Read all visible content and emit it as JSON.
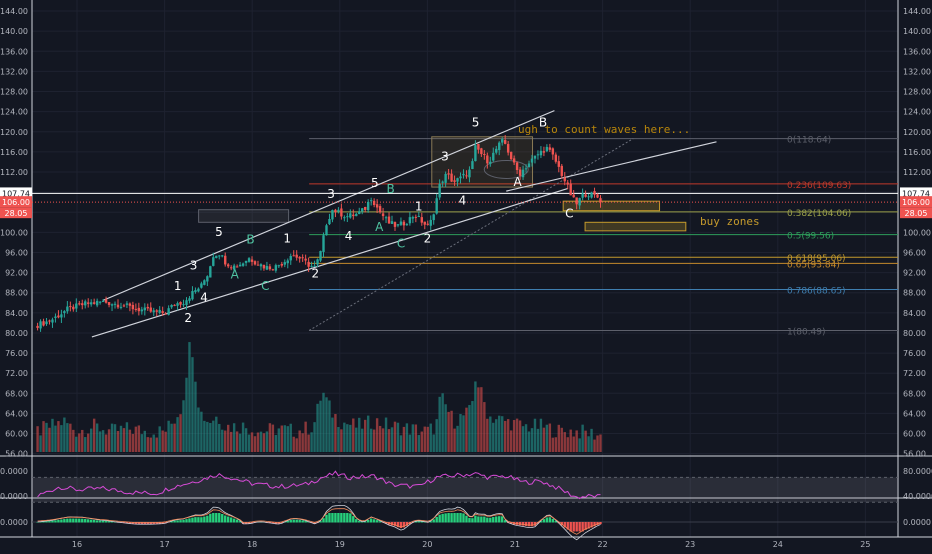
{
  "chart_data": {
    "type": "candlestick",
    "x_ticks": [
      "16",
      "17",
      "18",
      "19",
      "20",
      "21",
      "22",
      "23",
      "24",
      "25"
    ],
    "y_ticks_left": [
      "144.00",
      "140.00",
      "136.00",
      "132.00",
      "128.00",
      "124.00",
      "120.00",
      "116.00",
      "112.00",
      "108.00",
      "104.00",
      "100.00",
      "96.00",
      "92.00",
      "88.00",
      "84.00",
      "80.00",
      "76.00",
      "72.00",
      "68.00",
      "64.00",
      "60.00",
      "56.00"
    ],
    "y_ticks_right": [
      "144.00",
      "140.00",
      "136.00",
      "132.00",
      "128.00",
      "124.00",
      "120.00",
      "116.00",
      "112.00",
      "108.00",
      "104.00",
      "100.00",
      "96.00",
      "92.00",
      "88.00",
      "84.00",
      "80.00",
      "76.00",
      "72.00",
      "68.00",
      "64.00",
      "60.00",
      "56.00"
    ],
    "ylim": [
      55,
      145
    ],
    "xlim": [
      15.5,
      25.3
    ],
    "price_labels": {
      "current": "107.74",
      "line": "106.00",
      "sub": "28.05",
      "right_current": "107.74",
      "right_line": "106.00",
      "right_sub": "28.05"
    },
    "close_path": [
      [
        15.55,
        81.6
      ],
      [
        15.7,
        82.5
      ],
      [
        15.9,
        84.8
      ],
      [
        16.1,
        85.8
      ],
      [
        16.3,
        86.2
      ],
      [
        16.5,
        85.6
      ],
      [
        16.7,
        84.7
      ],
      [
        16.9,
        84.1
      ],
      [
        17.0,
        84.0
      ],
      [
        17.12,
        85.8
      ],
      [
        17.22,
        86.2
      ],
      [
        17.32,
        88.0
      ],
      [
        17.42,
        89.4
      ],
      [
        17.5,
        92.0
      ],
      [
        17.55,
        95.4
      ],
      [
        17.62,
        96.0
      ],
      [
        17.7,
        94.0
      ],
      [
        17.78,
        93.2
      ],
      [
        17.88,
        93.8
      ],
      [
        17.96,
        94.9
      ],
      [
        18.05,
        94.0
      ],
      [
        18.15,
        93.1
      ],
      [
        18.25,
        93.0
      ],
      [
        18.35,
        94.0
      ],
      [
        18.45,
        95.6
      ],
      [
        18.55,
        94.8
      ],
      [
        18.65,
        93.5
      ],
      [
        18.72,
        93.0
      ],
      [
        18.78,
        96.0
      ],
      [
        18.85,
        102.0
      ],
      [
        18.92,
        104.6
      ],
      [
        19.0,
        103.8
      ],
      [
        19.08,
        103.2
      ],
      [
        19.18,
        103.5
      ],
      [
        19.28,
        104.5
      ],
      [
        19.36,
        107.0
      ],
      [
        19.44,
        104.5
      ],
      [
        19.55,
        102.0
      ],
      [
        19.65,
        101.2
      ],
      [
        19.75,
        102.0
      ],
      [
        19.85,
        103.5
      ],
      [
        19.95,
        102.0
      ],
      [
        20.0,
        101.0
      ],
      [
        20.05,
        102.5
      ],
      [
        20.15,
        110.0
      ],
      [
        20.22,
        111.5
      ],
      [
        20.3,
        110.0
      ],
      [
        20.4,
        111.0
      ],
      [
        20.5,
        112.5
      ],
      [
        20.55,
        117.0
      ],
      [
        20.62,
        115.5
      ],
      [
        20.7,
        114.0
      ],
      [
        20.8,
        117.0
      ],
      [
        20.87,
        118.3
      ],
      [
        20.95,
        115.0
      ],
      [
        21.0,
        113.0
      ],
      [
        21.05,
        111.6
      ],
      [
        21.12,
        113.0
      ],
      [
        21.2,
        114.5
      ],
      [
        21.28,
        115.8
      ],
      [
        21.36,
        116.8
      ],
      [
        21.42,
        115.5
      ],
      [
        21.48,
        113.6
      ],
      [
        21.55,
        111.0
      ],
      [
        21.6,
        109.0
      ],
      [
        21.65,
        107.0
      ],
      [
        21.7,
        105.5
      ],
      [
        21.76,
        107.2
      ],
      [
        21.82,
        107.8
      ],
      [
        21.88,
        107.4
      ],
      [
        21.94,
        107.0
      ],
      [
        22.0,
        106.0
      ]
    ],
    "volume_path": [
      [
        15.55,
        58
      ],
      [
        15.7,
        59
      ],
      [
        15.85,
        60
      ],
      [
        16.0,
        58
      ],
      [
        16.2,
        59
      ],
      [
        16.4,
        58
      ],
      [
        16.6,
        58.5
      ],
      [
        16.8,
        58
      ],
      [
        17.0,
        58
      ],
      [
        17.1,
        60
      ],
      [
        17.2,
        63
      ],
      [
        17.3,
        77
      ],
      [
        17.4,
        62
      ],
      [
        17.5,
        60
      ],
      [
        17.6,
        61
      ],
      [
        17.7,
        59
      ],
      [
        17.9,
        59
      ],
      [
        18.1,
        58
      ],
      [
        18.3,
        58.5
      ],
      [
        18.5,
        58
      ],
      [
        18.7,
        59
      ],
      [
        18.8,
        66
      ],
      [
        18.9,
        62
      ],
      [
        19.0,
        60
      ],
      [
        19.2,
        59
      ],
      [
        19.4,
        60
      ],
      [
        19.6,
        59
      ],
      [
        19.8,
        58.5
      ],
      [
        20.0,
        58
      ],
      [
        20.1,
        59
      ],
      [
        20.15,
        65
      ],
      [
        20.3,
        60
      ],
      [
        20.5,
        62
      ],
      [
        20.55,
        69
      ],
      [
        20.7,
        61
      ],
      [
        20.9,
        60
      ],
      [
        21.1,
        59
      ],
      [
        21.3,
        59
      ],
      [
        21.5,
        58
      ],
      [
        21.7,
        58
      ],
      [
        21.9,
        57.5
      ],
      [
        22.0,
        57
      ]
    ],
    "rsi_path": [
      [
        15.55,
        40
      ],
      [
        15.8,
        55
      ],
      [
        16.0,
        50
      ],
      [
        16.3,
        52
      ],
      [
        16.6,
        46
      ],
      [
        16.9,
        44
      ],
      [
        17.1,
        55
      ],
      [
        17.3,
        62
      ],
      [
        17.5,
        70
      ],
      [
        17.6,
        75
      ],
      [
        17.8,
        68
      ],
      [
        18.0,
        60
      ],
      [
        18.3,
        55
      ],
      [
        18.6,
        58
      ],
      [
        18.8,
        70
      ],
      [
        18.95,
        76
      ],
      [
        19.1,
        70
      ],
      [
        19.4,
        72
      ],
      [
        19.6,
        58
      ],
      [
        19.9,
        55
      ],
      [
        20.1,
        70
      ],
      [
        20.3,
        73
      ],
      [
        20.55,
        76
      ],
      [
        20.7,
        70
      ],
      [
        20.9,
        72
      ],
      [
        21.1,
        62
      ],
      [
        21.3,
        64
      ],
      [
        21.5,
        52
      ],
      [
        21.7,
        38
      ],
      [
        21.9,
        40
      ],
      [
        22.0,
        38
      ]
    ],
    "fib_levels": [
      {
        "label": "0(118.64)",
        "value": 118.64,
        "color": "#5d606b"
      },
      {
        "label": "0.236(109.63)",
        "value": 109.63,
        "color": "#c0392b"
      },
      {
        "label": "0.382(104.06)",
        "value": 104.06,
        "color": "#9aa04a"
      },
      {
        "label": "0.5(99.56)",
        "value": 99.56,
        "color": "#2e9e5b"
      },
      {
        "label": "0.618(95.06)",
        "value": 95.06,
        "color": "#c49a2c"
      },
      {
        "label": "0.65(93.84)",
        "value": 93.84,
        "color": "#c48a2c"
      },
      {
        "label": "0.786(88.65)",
        "value": 88.65,
        "color": "#3f7fb0"
      },
      {
        "label": "1(80.49)",
        "value": 80.49,
        "color": "#5d606b"
      }
    ],
    "wave_labels": [
      {
        "text": "1",
        "x": 17.15,
        "y": 88.5,
        "color": "#ffffff"
      },
      {
        "text": "2",
        "x": 17.27,
        "y": 82.2,
        "color": "#ffffff"
      },
      {
        "text": "3",
        "x": 17.33,
        "y": 92.6,
        "color": "#ffffff"
      },
      {
        "text": "4",
        "x": 17.45,
        "y": 86.3,
        "color": "#ffffff"
      },
      {
        "text": "5",
        "x": 17.62,
        "y": 99.3,
        "color": "#ffffff"
      },
      {
        "text": "A",
        "x": 17.8,
        "y": 90.8,
        "color": "#4fc3a1"
      },
      {
        "text": "B",
        "x": 17.98,
        "y": 97.8,
        "color": "#4fc3a1"
      },
      {
        "text": "C",
        "x": 18.15,
        "y": 88.5,
        "color": "#4fc3a1"
      },
      {
        "text": "1",
        "x": 18.4,
        "y": 98.0,
        "color": "#ffffff"
      },
      {
        "text": "2",
        "x": 18.72,
        "y": 91.0,
        "color": "#ffffff"
      },
      {
        "text": "3",
        "x": 18.9,
        "y": 106.8,
        "color": "#ffffff"
      },
      {
        "text": "4",
        "x": 19.1,
        "y": 98.5,
        "color": "#ffffff"
      },
      {
        "text": "5",
        "x": 19.4,
        "y": 109.0,
        "color": "#ffffff"
      },
      {
        "text": "B",
        "x": 19.58,
        "y": 107.8,
        "color": "#4fc3a1"
      },
      {
        "text": "A",
        "x": 19.45,
        "y": 100.3,
        "color": "#4fc3a1"
      },
      {
        "text": "1",
        "x": 19.9,
        "y": 104.3,
        "color": "#ffffff"
      },
      {
        "text": "C",
        "x": 19.7,
        "y": 97.0,
        "color": "#4fc3a1"
      },
      {
        "text": "2",
        "x": 20.0,
        "y": 98.0,
        "color": "#ffffff"
      },
      {
        "text": "3",
        "x": 20.2,
        "y": 114.3,
        "color": "#ffffff"
      },
      {
        "text": "4",
        "x": 20.4,
        "y": 105.5,
        "color": "#ffffff"
      },
      {
        "text": "5",
        "x": 20.55,
        "y": 121.0,
        "color": "#ffffff"
      },
      {
        "text": "A",
        "x": 21.03,
        "y": 109.2,
        "color": "#ffffff"
      },
      {
        "text": "B",
        "x": 21.32,
        "y": 121.0,
        "color": "#ffffff"
      },
      {
        "text": "C",
        "x": 21.62,
        "y": 103.0,
        "color": "#ffffff"
      }
    ],
    "annotations": {
      "note": "ugh to count waves here...",
      "buy": "buy zones"
    },
    "rsi_ticks": [
      "80.0000",
      "40.0000"
    ],
    "rsi_ticks_right": [
      "80.0000",
      "40.0000"
    ],
    "macd_tick": "0.0000",
    "macd_tick_right": "0.0000",
    "colors": {
      "up": "#26a69a",
      "down": "#ef5350",
      "rsi": "#d64bd6",
      "bg": "#131722",
      "grid": "#1e2230",
      "text": "#b2b5be"
    }
  }
}
